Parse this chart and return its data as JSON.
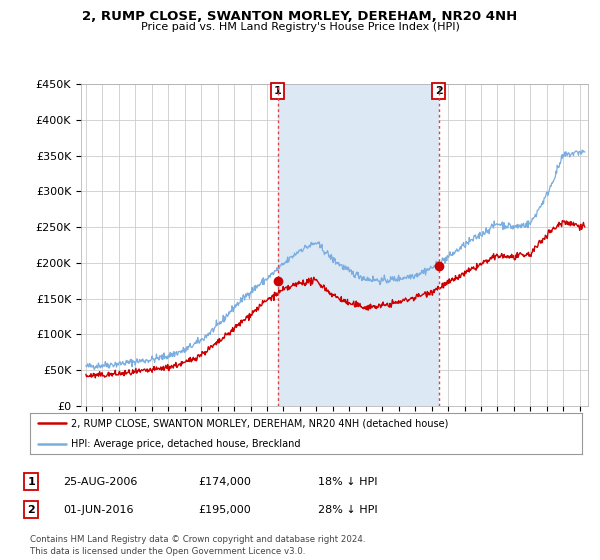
{
  "title": "2, RUMP CLOSE, SWANTON MORLEY, DEREHAM, NR20 4NH",
  "subtitle": "Price paid vs. HM Land Registry's House Price Index (HPI)",
  "ylim": [
    0,
    450000
  ],
  "xlim_start": 1994.7,
  "xlim_end": 2025.5,
  "sale1": {
    "date_x": 2006.65,
    "price": 174000,
    "label": "1"
  },
  "sale2": {
    "date_x": 2016.42,
    "price": 195000,
    "label": "2"
  },
  "legend_line1": "2, RUMP CLOSE, SWANTON MORLEY, DEREHAM, NR20 4NH (detached house)",
  "legend_line2": "HPI: Average price, detached house, Breckland",
  "table_rows": [
    {
      "num": "1",
      "date": "25-AUG-2006",
      "price": "£174,000",
      "pct": "18% ↓ HPI"
    },
    {
      "num": "2",
      "date": "01-JUN-2016",
      "price": "£195,000",
      "pct": "28% ↓ HPI"
    }
  ],
  "footnote1": "Contains HM Land Registry data © Crown copyright and database right 2024.",
  "footnote2": "This data is licensed under the Open Government Licence v3.0.",
  "color_house": "#cc0000",
  "color_hpi": "#7aade0",
  "shade_color": "#dde8f5",
  "background_plot": "#ffffff",
  "background_fig": "#ffffff",
  "grid_color": "#cccccc"
}
